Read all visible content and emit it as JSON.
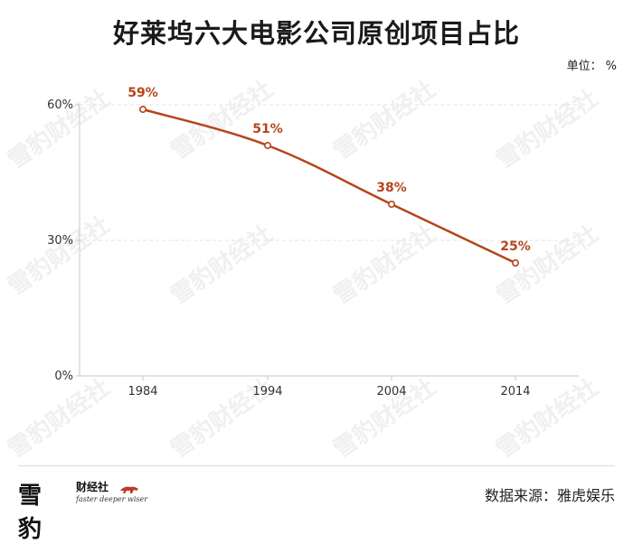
{
  "header": {
    "title": "好莱坞六大电影公司原创项目占比",
    "unit_label": "单位：",
    "unit_value": "%"
  },
  "chart_data": {
    "type": "line",
    "categories": [
      "1984",
      "1994",
      "2004",
      "2014"
    ],
    "values": [
      59,
      51,
      38,
      25
    ],
    "data_labels": [
      "59%",
      "51%",
      "38%",
      "25%"
    ],
    "yticks": [
      "0%",
      "30%",
      "60%"
    ],
    "ytick_values": [
      0,
      30,
      60
    ],
    "ylim": [
      0,
      60
    ],
    "grid": true,
    "line_color": "#b5451b",
    "label_color": "#b5451b"
  },
  "footer": {
    "logo_main": "雪豹",
    "logo_sub": "财经社",
    "logo_slogan": "faster deeper wiser",
    "source": "数据来源：雅虎娱乐"
  },
  "colors": {
    "accent": "#b5451b",
    "axis": "#c8c8c8",
    "grid": "#e6e6e6",
    "logo_red": "#c0392b"
  }
}
